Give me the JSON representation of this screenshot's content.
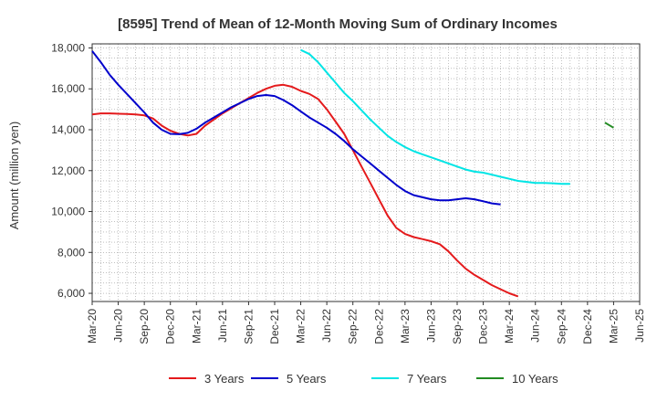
{
  "chart_data": {
    "type": "line",
    "title": "[8595]  Trend of Mean of 12-Month Moving Sum of Ordinary Incomes",
    "xlabel": "",
    "ylabel": "Amount (million yen)",
    "ylim": [
      5600,
      18200
    ],
    "yticks": [
      6000,
      8000,
      10000,
      12000,
      14000,
      16000,
      18000
    ],
    "ytick_labels": [
      "6,000",
      "8,000",
      "10,000",
      "12,000",
      "14,000",
      "16,000",
      "18,000"
    ],
    "xticks": [
      "Mar-20",
      "Jun-20",
      "Sep-20",
      "Dec-20",
      "Mar-21",
      "Jun-21",
      "Sep-21",
      "Dec-21",
      "Mar-22",
      "Jun-22",
      "Sep-22",
      "Dec-22",
      "Mar-23",
      "Jun-23",
      "Sep-23",
      "Dec-23",
      "Mar-24",
      "Jun-24",
      "Sep-24",
      "Dec-24",
      "Mar-25",
      "Jun-25"
    ],
    "grid": true,
    "legend_position": "bottom",
    "series": [
      {
        "name": "3 Years",
        "color": "#e41a1c",
        "start": 0,
        "values": [
          14750,
          14800,
          14800,
          14780,
          14770,
          14750,
          14700,
          14550,
          14200,
          13950,
          13800,
          13720,
          13800,
          14200,
          14500,
          14800,
          15050,
          15300,
          15550,
          15800,
          16000,
          16150,
          16200,
          16100,
          15900,
          15750,
          15500,
          15000,
          14400,
          13800,
          13000,
          12200,
          11400,
          10600,
          9800,
          9200,
          8900,
          8750,
          8650,
          8550,
          8400,
          8050,
          7600,
          7200,
          6900,
          6650,
          6400,
          6200,
          6000,
          5850
        ]
      },
      {
        "name": "5 Years",
        "color": "#0000cc",
        "start": 0,
        "values": [
          17850,
          17300,
          16700,
          16200,
          15750,
          15300,
          14850,
          14350,
          14000,
          13800,
          13780,
          13850,
          14050,
          14350,
          14600,
          14850,
          15100,
          15300,
          15500,
          15650,
          15700,
          15650,
          15450,
          15200,
          14900,
          14600,
          14350,
          14100,
          13800,
          13450,
          13050,
          12700,
          12350,
          12000,
          11650,
          11300,
          11000,
          10800,
          10700,
          10600,
          10550,
          10550,
          10600,
          10650,
          10600,
          10500,
          10400,
          10350
        ]
      },
      {
        "name": "7 Years",
        "color": "#00e5e5",
        "start": 24,
        "values": [
          17900,
          17700,
          17300,
          16800,
          16300,
          15800,
          15400,
          14950,
          14500,
          14100,
          13700,
          13400,
          13150,
          12950,
          12800,
          12650,
          12500,
          12350,
          12200,
          12050,
          11950,
          11900,
          11800,
          11700,
          11600,
          11500,
          11450,
          11400,
          11400,
          11380,
          11350,
          11350
        ]
      },
      {
        "name": "10 Years",
        "color": "#228b22",
        "start": 0,
        "values_note": "short segment at Feb-25 to Mar-25",
        "values": []
      }
    ],
    "ten_year_segment": {
      "from_month": "Feb-25",
      "to_month": "Mar-25",
      "values": [
        14350,
        14100
      ]
    }
  }
}
